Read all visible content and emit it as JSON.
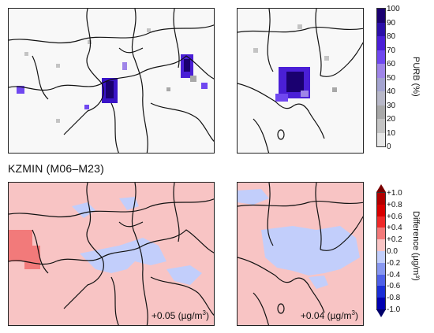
{
  "section_title": "KZMIN (M06–M23)",
  "annotations": {
    "kansai": {
      "value": "+0.05",
      "unit_prefix": "(µg/m",
      "unit_exp": "3",
      "unit_suffix": ")"
    },
    "kanto": {
      "value": "+0.04",
      "unit_prefix": "(µg/m",
      "unit_exp": "3",
      "unit_suffix": ")"
    }
  },
  "purb_colorbar": {
    "title": "PURB (%)",
    "ticks": [
      "100",
      "90",
      "80",
      "70",
      "60",
      "50",
      "40",
      "30",
      "20",
      "10",
      "0"
    ],
    "colors": [
      "#1a0070",
      "#2b0fa8",
      "#4a1fd6",
      "#7048f0",
      "#9f85e8",
      "#a4a4d0",
      "#b8b8c8",
      "#a8a8a8",
      "#c4c4c4",
      "#e6e6e6"
    ]
  },
  "diff_colorbar": {
    "title": "Difference (µg/m³)",
    "ticks": [
      "+1.0",
      "+0.8",
      "+0.6",
      "+0.4",
      "+0.2",
      "0.0",
      "-0.2",
      "-0.4",
      "-0.6",
      "-0.8",
      "-1.0"
    ],
    "colors": [
      "#b20000",
      "#d80000",
      "#ef2a2a",
      "#f27a7a",
      "#f8c4c4",
      "#c2cefb",
      "#8898f0",
      "#4f61e8",
      "#1a2ed6",
      "#0000b0"
    ],
    "top_arrow_color": "#7a0000",
    "bottom_arrow_color": "#00006a"
  }
}
